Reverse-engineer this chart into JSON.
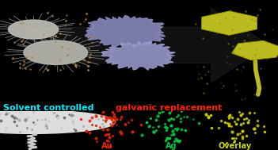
{
  "title_cyan": "Solvent controlled ",
  "title_red": "galvanic replacement",
  "label_au": "Au",
  "label_ag": "Ag",
  "label_overlay": "Overlay",
  "cyan_color": "#00EEFF",
  "red_color": "#FF2200",
  "green_color": "#00CC44",
  "yellow_green_color": "#CCDD00",
  "figsize": [
    3.51,
    1.89
  ],
  "dpi": 100
}
